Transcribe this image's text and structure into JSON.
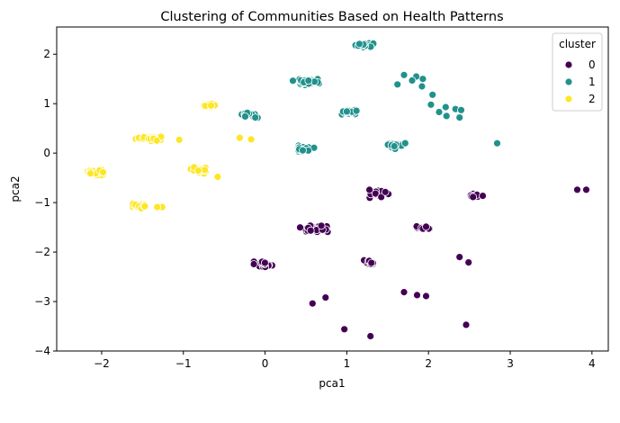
{
  "chart_data": {
    "type": "scatter",
    "title": "Clustering of Communities Based on Health Patterns",
    "xlabel": "pca1",
    "ylabel": "pca2",
    "xlim": [
      -2.55,
      4.2
    ],
    "ylim": [
      -4.0,
      2.55
    ],
    "xticks": [
      "−2",
      "−1",
      "0",
      "1",
      "2",
      "3",
      "4"
    ],
    "xtick_values": [
      -2,
      -1,
      0,
      1,
      2,
      3,
      4
    ],
    "yticks": [
      "2",
      "1",
      "0",
      "−1",
      "−2",
      "−3",
      "−4"
    ],
    "ytick_values": [
      2,
      1,
      0,
      -1,
      -2,
      -3,
      -4
    ],
    "grid": false,
    "legend": {
      "title": "cluster",
      "placement": "top-right",
      "entries": [
        {
          "label": "0",
          "color": "#440154"
        },
        {
          "label": "1",
          "color": "#21918c"
        },
        {
          "label": "2",
          "color": "#fde725"
        }
      ]
    },
    "series": [
      {
        "name": "0",
        "color": "#440154",
        "groups": [
          {
            "cx": 1.37,
            "cy": -0.83,
            "sx": 0.2,
            "sy": 0.08,
            "n": 22
          },
          {
            "cx": 0.6,
            "cy": -1.53,
            "sx": 0.18,
            "sy": 0.06,
            "n": 36
          },
          {
            "cx": 1.97,
            "cy": -1.5,
            "sx": 0.1,
            "sy": 0.03,
            "n": 9
          },
          {
            "cx": 2.57,
            "cy": -0.86,
            "sx": 0.07,
            "sy": 0.06,
            "n": 9
          },
          {
            "cx": -0.02,
            "cy": -2.25,
            "sx": 0.12,
            "sy": 0.06,
            "n": 18
          },
          {
            "cx": 1.28,
            "cy": -2.25,
            "sx": 0.1,
            "sy": 0.07,
            "n": 11
          }
        ],
        "points": [
          [
            3.82,
            -0.74
          ],
          [
            3.93,
            -0.74
          ],
          [
            2.38,
            -2.1
          ],
          [
            2.49,
            -2.21
          ],
          [
            0.58,
            -3.04
          ],
          [
            0.74,
            -2.92
          ],
          [
            1.7,
            -2.81
          ],
          [
            1.86,
            -2.87
          ],
          [
            1.97,
            -2.89
          ],
          [
            0.97,
            -3.56
          ],
          [
            1.29,
            -3.7
          ],
          [
            2.46,
            -3.47
          ]
        ]
      },
      {
        "name": "1",
        "color": "#21918c",
        "groups": [
          {
            "cx": 1.2,
            "cy": 2.19,
            "sx": 0.11,
            "sy": 0.04,
            "n": 22
          },
          {
            "cx": 0.5,
            "cy": 1.45,
            "sx": 0.14,
            "sy": 0.05,
            "n": 38
          },
          {
            "cx": 1.03,
            "cy": 0.83,
            "sx": 0.1,
            "sy": 0.05,
            "n": 26
          },
          {
            "cx": -0.18,
            "cy": 0.78,
            "sx": 0.12,
            "sy": 0.05,
            "n": 16
          },
          {
            "cx": 0.47,
            "cy": 0.09,
            "sx": 0.11,
            "sy": 0.07,
            "n": 20
          },
          {
            "cx": 1.58,
            "cy": 0.15,
            "sx": 0.11,
            "sy": 0.07,
            "n": 16
          }
        ],
        "points": [
          [
            1.62,
            1.39
          ],
          [
            1.7,
            1.58
          ],
          [
            1.85,
            1.55
          ],
          [
            1.93,
            1.5
          ],
          [
            1.8,
            1.47
          ],
          [
            1.92,
            1.35
          ],
          [
            2.05,
            1.18
          ],
          [
            2.03,
            0.98
          ],
          [
            2.13,
            0.83
          ],
          [
            2.22,
            0.75
          ],
          [
            2.21,
            0.93
          ],
          [
            2.33,
            0.89
          ],
          [
            2.4,
            0.87
          ],
          [
            2.38,
            0.72
          ],
          [
            2.84,
            0.2
          ]
        ]
      },
      {
        "name": "2",
        "color": "#fde725",
        "groups": [
          {
            "cx": -1.4,
            "cy": 0.3,
            "sx": 0.14,
            "sy": 0.05,
            "n": 44
          },
          {
            "cx": -0.68,
            "cy": 0.96,
            "sx": 0.07,
            "sy": 0.04,
            "n": 17
          },
          {
            "cx": -2.05,
            "cy": -0.4,
            "sx": 0.1,
            "sy": 0.06,
            "n": 42
          },
          {
            "cx": -0.8,
            "cy": -0.35,
            "sx": 0.09,
            "sy": 0.05,
            "n": 24
          },
          {
            "cx": -1.55,
            "cy": -1.07,
            "sx": 0.09,
            "sy": 0.05,
            "n": 24
          }
        ],
        "points": [
          [
            -0.31,
            0.31
          ],
          [
            -0.17,
            0.28
          ],
          [
            -1.05,
            0.27
          ],
          [
            -0.58,
            -0.48
          ],
          [
            -1.26,
            -1.09
          ],
          [
            -1.32,
            -1.09
          ]
        ]
      }
    ]
  }
}
